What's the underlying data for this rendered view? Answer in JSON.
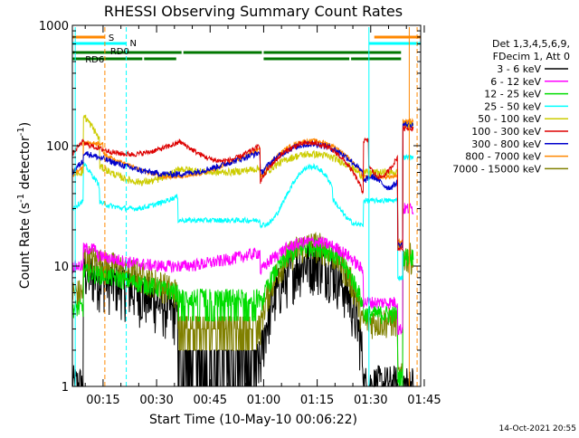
{
  "chart_data": {
    "type": "line",
    "title": "RHESSI Observing Summary Count Rates",
    "xlabel": "Start Time (10-May-10 00:06:22)",
    "ylabel_prefix": "Count Rate (s",
    "ylabel_exp": "-1",
    "ylabel_mid": " detector",
    "ylabel_exp2": "-1",
    "ylabel_suffix": ")",
    "y_scale": "log",
    "ylim": [
      1,
      1000
    ],
    "xlim_min": [
      6.4,
      104
    ],
    "x_ticks": [
      {
        "label": "00:15",
        "min": 15
      },
      {
        "label": "00:30",
        "min": 30
      },
      {
        "label": "00:45",
        "min": 45
      },
      {
        "label": "01:00",
        "min": 60
      },
      {
        "label": "01:15",
        "min": 75
      },
      {
        "label": "01:30",
        "min": 90
      },
      {
        "label": "01:45",
        "min": 105
      }
    ],
    "y_ticks": [
      {
        "label": "1",
        "value": 1
      },
      {
        "label": "10",
        "value": 10
      },
      {
        "label": "100",
        "value": 100
      },
      {
        "label": "1000",
        "value": 1000
      }
    ],
    "legend": {
      "placement": "right",
      "header": [
        "Det 1,3,4,5,6,9,",
        "FDecim 1, Att 0"
      ]
    },
    "series": [
      {
        "name": "3 - 6 keV",
        "color": "#000000",
        "key": "e1"
      },
      {
        "name": "6 - 12 keV",
        "color": "#ff00ff",
        "key": "e2"
      },
      {
        "name": "12 - 25 keV",
        "color": "#00dd00",
        "key": "e3"
      },
      {
        "name": "25 - 50 keV",
        "color": "#00ffff",
        "key": "e4"
      },
      {
        "name": "50 - 100 keV",
        "color": "#cccc00",
        "key": "e5"
      },
      {
        "name": "100 - 300 keV",
        "color": "#dd0000",
        "key": "e6"
      },
      {
        "name": "300 - 800 keV",
        "color": "#0000cc",
        "key": "e7"
      },
      {
        "name": "800 - 7000 keV",
        "color": "#ff8800",
        "key": "e8"
      },
      {
        "name": "7000 - 15000 keV",
        "color": "#808000",
        "key": "e9"
      }
    ],
    "flag_labels": {
      "saa": "S",
      "night": "N",
      "rd0": "RD0",
      "rd6": "RD6"
    },
    "flag_colors": {
      "saa": "#ff8800",
      "night": "#00ffff",
      "rd": "#007700"
    },
    "footer_date": "14-Oct-2021 20:55"
  }
}
